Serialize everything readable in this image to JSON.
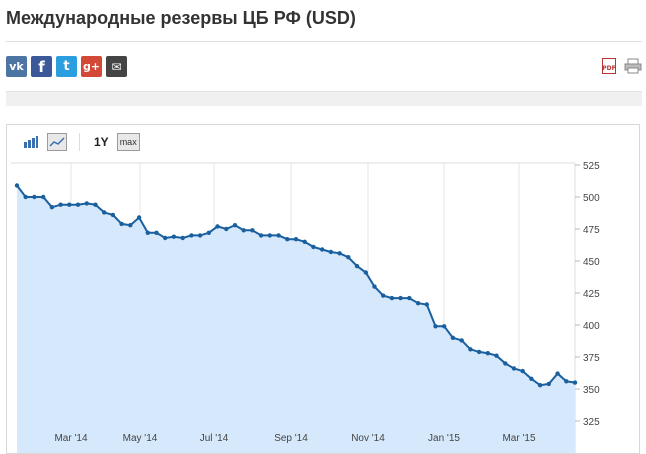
{
  "page": {
    "title": "Международные резервы ЦБ РФ (USD)"
  },
  "share": {
    "vk": "vk",
    "facebook": "f",
    "twitter": "t",
    "googleplus": "g+",
    "email": "✉"
  },
  "tools": {
    "pdf_label": "PDF"
  },
  "toolbar": {
    "range_1y": "1Y",
    "range_max": "max"
  },
  "colors": {
    "line": "#1a5f9e",
    "area": "#d6e8fb",
    "accent_pdf": "#bb3333"
  },
  "chart_data": {
    "type": "area",
    "title": "",
    "xlabel": "",
    "ylabel": "",
    "ylim": [
      325,
      525
    ],
    "y_ticks": [
      325,
      350,
      375,
      400,
      425,
      450,
      475,
      500,
      525
    ],
    "x_tick_labels": [
      "Mar '14",
      "May '14",
      "Jul '14",
      "Sep '14",
      "Nov '14",
      "Jan '15",
      "Mar '15"
    ],
    "grid": "vertical",
    "axis_side": "right",
    "series": [
      {
        "values": [
          509,
          500,
          500,
          500,
          492,
          494,
          494,
          494,
          495,
          494,
          488,
          486,
          479,
          478,
          484,
          472,
          472,
          468,
          469,
          468,
          470,
          470,
          472,
          477,
          475,
          478,
          474,
          474,
          470,
          470,
          470,
          467,
          467,
          465,
          461,
          459,
          457,
          456,
          453,
          446,
          441,
          430,
          423,
          421,
          421,
          421,
          417,
          416,
          399,
          399,
          390,
          388,
          381,
          379,
          378,
          376,
          370,
          366,
          364,
          358,
          353,
          354,
          362,
          356,
          355
        ]
      }
    ]
  }
}
